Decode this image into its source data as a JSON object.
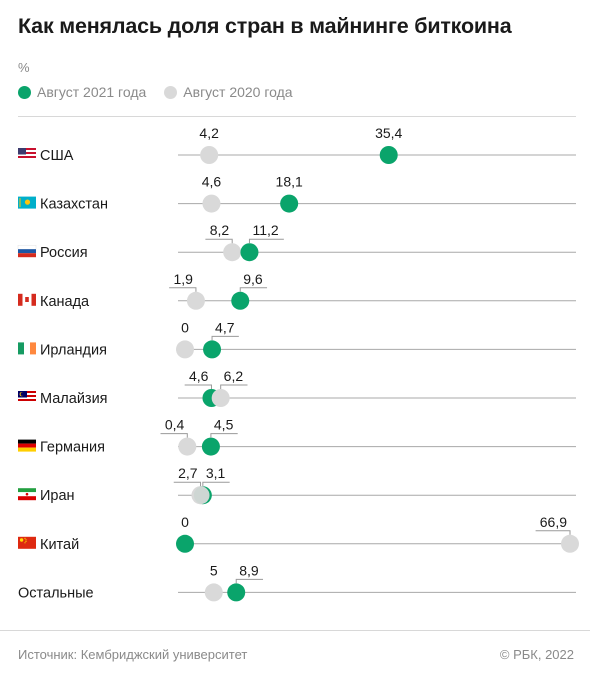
{
  "header": {
    "title": "Как менялась доля стран в майнинге биткоина",
    "unit": "%"
  },
  "legend": [
    {
      "label": "Август 2021 года",
      "color": "#0aa46b"
    },
    {
      "label": "Август 2020 года",
      "color": "#d9d9d9"
    }
  ],
  "footer": {
    "source": "Источник:  Кембриджский университет",
    "copyright": "©  РБК, 2022"
  },
  "colors": {
    "aug2021": "#0aa46b",
    "aug2020": "#d9d9d9",
    "line": "#9a9a9a"
  },
  "chart_data": {
    "type": "dot-plot",
    "xlim": [
      0,
      66.9
    ],
    "categories": [
      "США",
      "Казахстан",
      "Россия",
      "Канада",
      "Ирландия",
      "Малайзия",
      "Германия",
      "Иран",
      "Китай",
      "Остальные"
    ],
    "flags": [
      "us-flag-icon",
      "kz-flag-icon",
      "ru-flag-icon",
      "ca-flag-icon",
      "ie-flag-icon",
      "my-flag-icon",
      "de-flag-icon",
      "ir-flag-icon",
      "cn-flag-icon",
      ""
    ],
    "series": [
      {
        "name": "Август 2021 года",
        "values": [
          35.4,
          18.1,
          11.2,
          9.6,
          4.7,
          4.6,
          4.5,
          3.1,
          0,
          8.9
        ],
        "labels": [
          "35,4",
          "18,1",
          "11,2",
          "9,6",
          "4,7",
          "4,6",
          "4,5",
          "3,1",
          "0",
          "8,9"
        ]
      },
      {
        "name": "Август 2020 года",
        "values": [
          4.2,
          4.6,
          8.2,
          1.9,
          0,
          6.2,
          0.4,
          2.7,
          66.9,
          5
        ],
        "labels": [
          "4,2",
          "4,6",
          "8,2",
          "1,9",
          "0",
          "6,2",
          "0,4",
          "2,7",
          "66,9",
          "5"
        ]
      }
    ]
  }
}
